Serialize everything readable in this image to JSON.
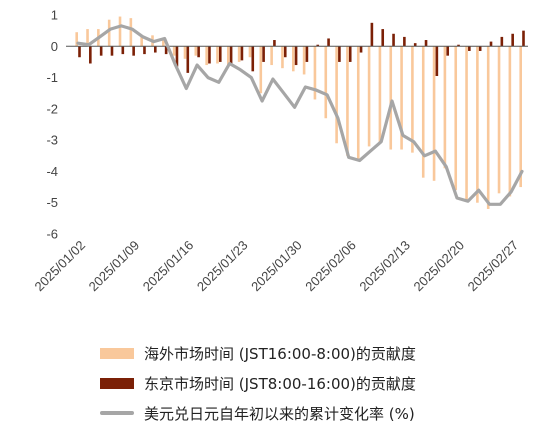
{
  "chart_data": {
    "type": "bar+line",
    "title": "",
    "xlabel": "",
    "ylabel": "",
    "ylim": [
      -6,
      1
    ],
    "yticks": [
      1,
      0,
      -1,
      -2,
      -3,
      -4,
      -5,
      -6
    ],
    "x_tick_labels": [
      "2025/01/02",
      "2025/01/09",
      "2025/01/16",
      "2025/01/23",
      "2025/01/30",
      "2025/02/06",
      "2025/02/13",
      "2025/02/20",
      "2025/02/27"
    ],
    "dates": [
      "01/02",
      "01/03",
      "01/06",
      "01/07",
      "01/08",
      "01/09",
      "01/10",
      "01/13",
      "01/14",
      "01/15",
      "01/16",
      "01/17",
      "01/20",
      "01/21",
      "01/22",
      "01/23",
      "01/24",
      "01/27",
      "01/28",
      "01/29",
      "01/30",
      "01/31",
      "02/03",
      "02/04",
      "02/05",
      "02/06",
      "02/07",
      "02/10",
      "02/11",
      "02/12",
      "02/13",
      "02/14",
      "02/17",
      "02/18",
      "02/19",
      "02/20",
      "02/21",
      "02/24",
      "02/25",
      "02/26",
      "02/27",
      "02/28"
    ],
    "series": [
      {
        "name": "海外市场时间 (JST16:00-8:00)的贡献度",
        "kind": "bar",
        "color": "#F9C89B",
        "values": [
          0.45,
          0.55,
          0.55,
          0.85,
          0.95,
          0.9,
          0.3,
          0.35,
          0.25,
          -0.3,
          -0.4,
          -0.3,
          -0.6,
          -0.55,
          -0.65,
          -0.5,
          -0.35,
          -1.5,
          -0.6,
          -0.7,
          -0.8,
          -0.9,
          -1.7,
          -2.3,
          -3.1,
          -3.5,
          -3.6,
          -3.2,
          -3.1,
          -3.3,
          -3.3,
          -3.4,
          -4.2,
          -4.3,
          -3.9,
          -4.6,
          -4.9,
          -5.0,
          -5.2,
          -4.7,
          -4.8,
          -4.5
        ]
      },
      {
        "name": "东京市场时间 (JST8:00-16:00)的贡献度",
        "kind": "bar",
        "color": "#7B2006",
        "values": [
          -0.35,
          -0.55,
          -0.3,
          -0.3,
          -0.25,
          -0.3,
          -0.25,
          -0.2,
          -0.25,
          -0.65,
          -0.85,
          -0.35,
          -0.55,
          -0.5,
          -0.6,
          -0.45,
          -0.8,
          -0.5,
          0.2,
          -0.35,
          -0.6,
          -0.5,
          0.05,
          0.25,
          -0.5,
          -0.5,
          -0.2,
          0.75,
          0.55,
          0.4,
          0.3,
          0.1,
          0.2,
          -0.95,
          -0.3,
          0.05,
          -0.15,
          -0.15,
          0.15,
          0.3,
          0.4,
          0.5
        ]
      },
      {
        "name": "美元兑日元自年初以来的累计变化率 (%)",
        "kind": "line",
        "color": "#A6A6A6",
        "values": [
          0.1,
          0.05,
          0.3,
          0.55,
          0.65,
          0.55,
          0.3,
          0.15,
          0.25,
          -0.6,
          -1.35,
          -0.6,
          -1.0,
          -1.15,
          -0.55,
          -0.75,
          -1.0,
          -1.75,
          -1.05,
          -1.5,
          -1.95,
          -1.3,
          -1.4,
          -1.55,
          -2.3,
          -3.55,
          -3.65,
          -3.35,
          -3.05,
          -1.75,
          -2.85,
          -3.05,
          -3.5,
          -3.35,
          -3.85,
          -4.85,
          -4.95,
          -4.6,
          -5.05,
          -5.05,
          -4.65,
          -4.0
        ]
      }
    ]
  }
}
